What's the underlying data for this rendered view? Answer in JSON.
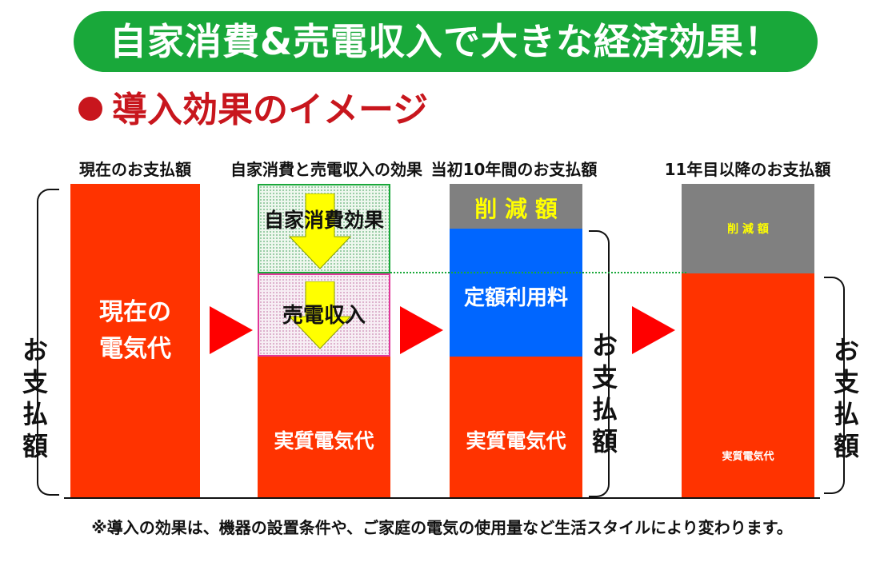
{
  "title": "自家消費&売電収入で大きな経済効果！",
  "subtitle": "導入効果のイメージ",
  "columns": {
    "current": "現在のお支払額",
    "effect": "自家消費と売電収入の効果",
    "first10": "当初10年間のお支払額",
    "after11": "11年目以降のお支払額"
  },
  "blocks": {
    "current_bill_line1": "現在の",
    "current_bill_line2": "電気代",
    "self_consumption": "自家消費効果",
    "sales_income": "売電収入",
    "real_bill": "実質電気代",
    "reduction": "削 減 額",
    "fixed_fee": "定額利用料",
    "reduction_small": "削 減 額",
    "real_bill_small": "実質電気代"
  },
  "payment_label": [
    "お",
    "支",
    "払",
    "額"
  ],
  "footnote": "※導入の効果は、機器の設置条件や、ご家庭の電気の使用量など生活スタイルにより変わります。",
  "colors": {
    "green": "#19a83a",
    "red": "#ff3300",
    "gray": "#808080",
    "blue": "#0066ff",
    "yellow": "#ffff00",
    "pink": "#e0389a"
  }
}
